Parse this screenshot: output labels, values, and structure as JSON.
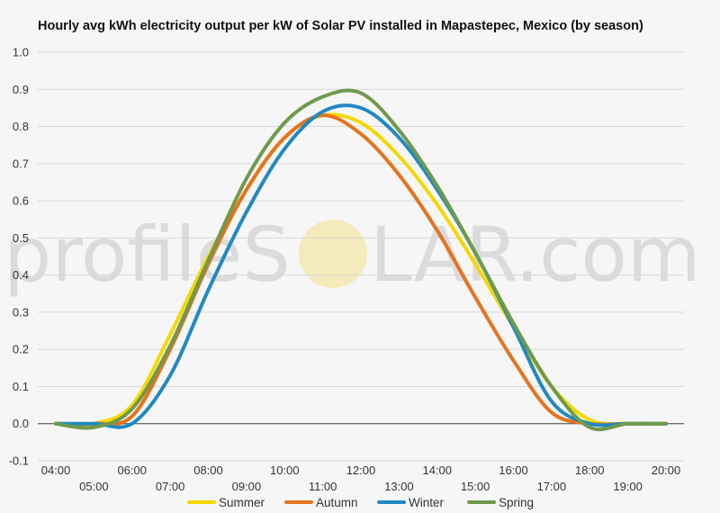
{
  "watermark": {
    "part1": "profileS",
    "part2": "LAR.com"
  },
  "chart_data": {
    "type": "line",
    "title": "Hourly avg kWh electricity output per kW of Solar PV installed in Mapastepec, Mexico (by season)",
    "xlabel": "",
    "ylabel": "",
    "ylim": [
      -0.1,
      1.0
    ],
    "yticks": [
      "-0.1",
      "0.0",
      "0.1",
      "0.2",
      "0.3",
      "0.4",
      "0.5",
      "0.6",
      "0.7",
      "0.8",
      "0.9",
      "1.0"
    ],
    "x": [
      "04:00",
      "05:00",
      "06:00",
      "07:00",
      "08:00",
      "09:00",
      "10:00",
      "11:00",
      "12:00",
      "13:00",
      "14:00",
      "15:00",
      "16:00",
      "17:00",
      "18:00",
      "19:00",
      "20:00"
    ],
    "grid": true,
    "legend_position": "bottom",
    "series": [
      {
        "name": "Summer",
        "color": "#f5d800",
        "values": [
          0.0,
          0.0,
          0.05,
          0.24,
          0.45,
          0.63,
          0.77,
          0.83,
          0.81,
          0.72,
          0.59,
          0.43,
          0.26,
          0.1,
          0.01,
          0.0,
          0.0
        ]
      },
      {
        "name": "Autumn",
        "color": "#e6731e",
        "values": [
          0.0,
          0.0,
          0.02,
          0.2,
          0.43,
          0.63,
          0.77,
          0.83,
          0.78,
          0.67,
          0.52,
          0.34,
          0.17,
          0.03,
          0.0,
          0.0,
          0.0
        ]
      },
      {
        "name": "Winter",
        "color": "#2089c2",
        "values": [
          0.0,
          0.0,
          0.0,
          0.13,
          0.36,
          0.57,
          0.74,
          0.84,
          0.85,
          0.77,
          0.63,
          0.46,
          0.26,
          0.06,
          0.0,
          0.0,
          0.0
        ]
      },
      {
        "name": "Spring",
        "color": "#6f9a4c",
        "values": [
          0.0,
          -0.01,
          0.04,
          0.21,
          0.44,
          0.66,
          0.81,
          0.88,
          0.89,
          0.79,
          0.64,
          0.46,
          0.27,
          0.1,
          -0.01,
          0.0,
          0.0
        ]
      }
    ]
  }
}
